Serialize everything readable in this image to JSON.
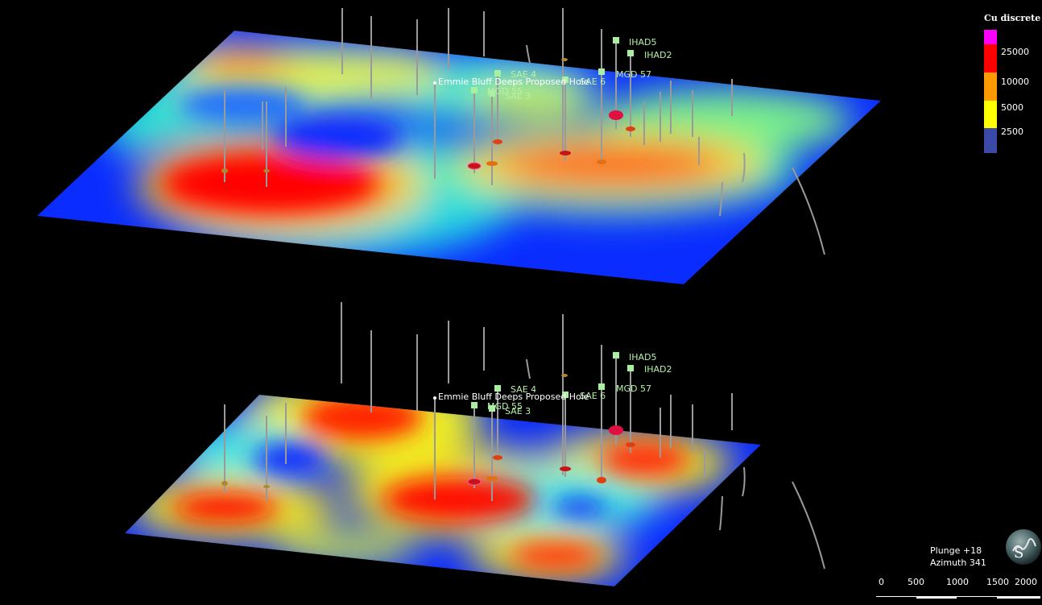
{
  "legend": {
    "title": "Cu discrete",
    "items": [
      {
        "label": "",
        "color": "#ff00ff"
      },
      {
        "label": "25000",
        "color": "#ff0000"
      },
      {
        "label": "10000",
        "color": "#ff9900"
      },
      {
        "label": "5000",
        "color": "#ffff00"
      },
      {
        "label": "2500",
        "color": "#3b4aa8"
      }
    ]
  },
  "colors": {
    "background": "#000000",
    "hole_label": "#b8f0a8",
    "trace": "#9a9a9a",
    "proposed_label": "#ffffff"
  },
  "drillholes": {
    "sae4": "SAE 4",
    "sae3": "SAE 3",
    "mgd55": "MGD 55",
    "mgd57": "MGD 57",
    "ihad5": "IHAD5",
    "ihad2": "IHAD2",
    "sae6": "SAE 6",
    "proposed": "Emmie Bluff Deeps Proposed Hole"
  },
  "view": {
    "plunge": "Plunge +18",
    "azimuth": "Azimuth 341"
  },
  "scalebar": {
    "ticks": [
      "0",
      "500",
      "1000",
      "1500",
      "2000"
    ]
  }
}
